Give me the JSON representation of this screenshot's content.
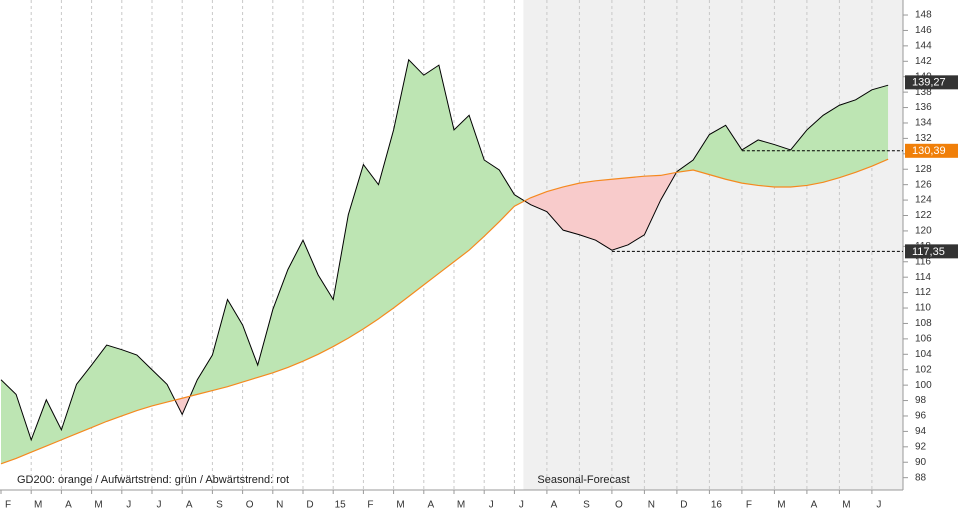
{
  "chart_data": {
    "type": "line",
    "categories": [
      "F",
      null,
      "M",
      null,
      "A",
      null,
      "M",
      null,
      "J",
      null,
      "J",
      null,
      "A",
      null,
      "S",
      null,
      "O",
      null,
      "N",
      null,
      "D",
      null,
      "15",
      null,
      "F",
      null,
      "M",
      null,
      "A",
      null,
      "M",
      null,
      "J",
      null,
      "J",
      null,
      "A",
      null,
      "S",
      null,
      "O",
      null,
      "N",
      null,
      "D",
      null,
      "16",
      null,
      "F",
      null,
      "M",
      null,
      "A",
      null,
      "M",
      null,
      "J",
      null
    ],
    "series": [
      {
        "color": "#000000",
        "values": [
          100.7,
          98.8,
          92.9,
          98.1,
          94.2,
          100.1,
          102.6,
          105.2,
          104.6,
          103.9,
          102.0,
          100.1,
          96.2,
          100.7,
          103.9,
          111.1,
          107.8,
          102.6,
          109.8,
          115.0,
          118.8,
          114.3,
          111.1,
          122.1,
          128.6,
          126.0,
          133.1,
          142.2,
          140.2,
          141.5,
          133.1,
          135.0,
          129.2,
          127.9,
          124.7,
          null,
          null,
          null,
          null,
          null,
          null,
          null,
          null,
          null,
          null,
          null,
          null,
          null,
          null,
          null,
          null,
          null,
          null,
          null,
          null,
          null,
          null,
          null
        ]
      },
      {
        "color": "#000000",
        "values": [
          null,
          null,
          null,
          null,
          null,
          null,
          null,
          null,
          null,
          null,
          null,
          null,
          null,
          null,
          null,
          null,
          null,
          null,
          null,
          null,
          null,
          null,
          null,
          null,
          null,
          null,
          null,
          null,
          null,
          null,
          null,
          null,
          null,
          null,
          124.7,
          123.4,
          122.5,
          120.1,
          119.5,
          118.8,
          117.5,
          118.2,
          119.5,
          124.0,
          127.7,
          129.2,
          132.5,
          133.7,
          130.5,
          131.8,
          131.2,
          130.5,
          133.1,
          135.0,
          136.3,
          137.0,
          138.3,
          138.9
        ]
      },
      {
        "color": "#f5891f",
        "values": [
          89.8,
          90.5,
          91.3,
          92.1,
          92.9,
          93.7,
          94.5,
          95.3,
          96.0,
          96.7,
          97.3,
          97.8,
          98.3,
          98.8,
          99.3,
          99.8,
          100.4,
          101.0,
          101.6,
          102.3,
          103.1,
          104.0,
          105.0,
          106.1,
          107.3,
          108.6,
          110.0,
          111.5,
          113.0,
          114.5,
          116.0,
          117.5,
          119.3,
          121.2,
          123.2,
          124.3,
          125.1,
          125.7,
          126.2,
          126.5,
          126.7,
          126.9,
          127.1,
          127.2,
          127.6,
          127.9,
          127.3,
          126.7,
          126.2,
          125.9,
          125.7,
          125.7,
          125.9,
          126.3,
          126.9,
          127.6,
          128.4,
          129.3
        ]
      }
    ],
    "up_color": "#bde5b3",
    "down_color": "#f8cbcb",
    "forecast_background": "#f0f0f0",
    "ylim": [
      86.4,
      149.3
    ],
    "yticks": [
      88,
      90,
      92,
      94,
      96,
      98,
      100,
      102,
      104,
      106,
      108,
      110,
      112,
      114,
      116,
      118,
      120,
      122,
      124,
      126,
      128,
      130,
      132,
      134,
      136,
      138,
      140,
      142,
      144,
      146,
      148
    ],
    "note": "GD200: orange / Aufwärtstrend: grün / Abwärtstrend: rot",
    "forecast_label": "Seasonal-Forecast",
    "price_labels": [
      {
        "value": 139.27,
        "label": "139,27",
        "color": "#333333"
      },
      {
        "value": 130.39,
        "label": "130,39",
        "color": "#f07f09"
      },
      {
        "value": 117.35,
        "label": "117,35",
        "color": "#333333"
      }
    ]
  }
}
